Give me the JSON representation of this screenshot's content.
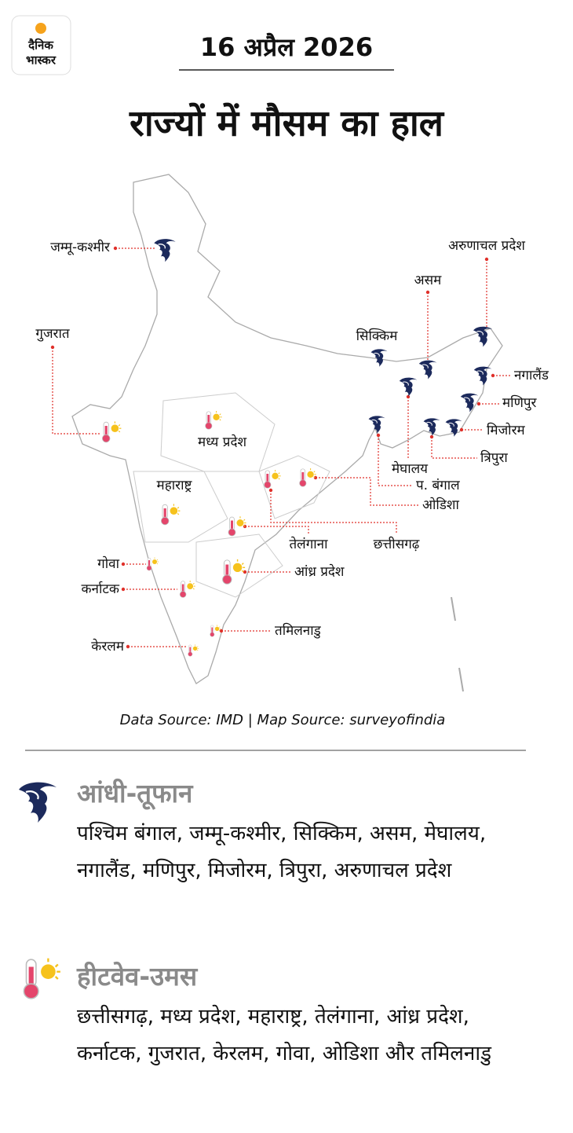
{
  "header": {
    "logo": [
      "दैनिक",
      "भास्कर"
    ],
    "date": "16 अप्रैल 2026",
    "title": "राज्यों में मौसम का हाल"
  },
  "map": {
    "storm_states": [
      "जम्मू-कश्मीर",
      "अरुणाचल प्रदेश",
      "असम",
      "सिक्किम",
      "नगालैंड",
      "मणिपुर",
      "मिजोरम",
      "त्रिपुरा",
      "मेघालय",
      "प. बंगाल"
    ],
    "heat_states": [
      "गुजरात",
      "मध्य प्रदेश",
      "महाराष्ट्र",
      "ओडिशा",
      "छत्तीसगढ़",
      "तेलंगाना",
      "आंध्र प्रदेश",
      "गोवा",
      "कर्नाटक",
      "तमिलनाडु",
      "केरलम"
    ],
    "source": "Data Source: IMD | Map Source: surveyofindia"
  },
  "legend": [
    {
      "title": "आंधी-तूफान",
      "text": "पश्चिम बंगाल, जम्मू-कश्मीर, सिक्किम, असम, मेघालय, नगालैंड, मणिपुर, मिजोरम, त्रिपुरा, अरुणाचल प्रदेश"
    },
    {
      "title": "हीटवेव-उमस",
      "text": "छत्तीसगढ़, मध्य प्रदेश, महाराष्ट्र, तेलंगाना, आंध्र प्रदेश, कर्नाटक, गुजरात, केरलम, गोवा, ओडिशा और तमिलनाडु"
    }
  ]
}
